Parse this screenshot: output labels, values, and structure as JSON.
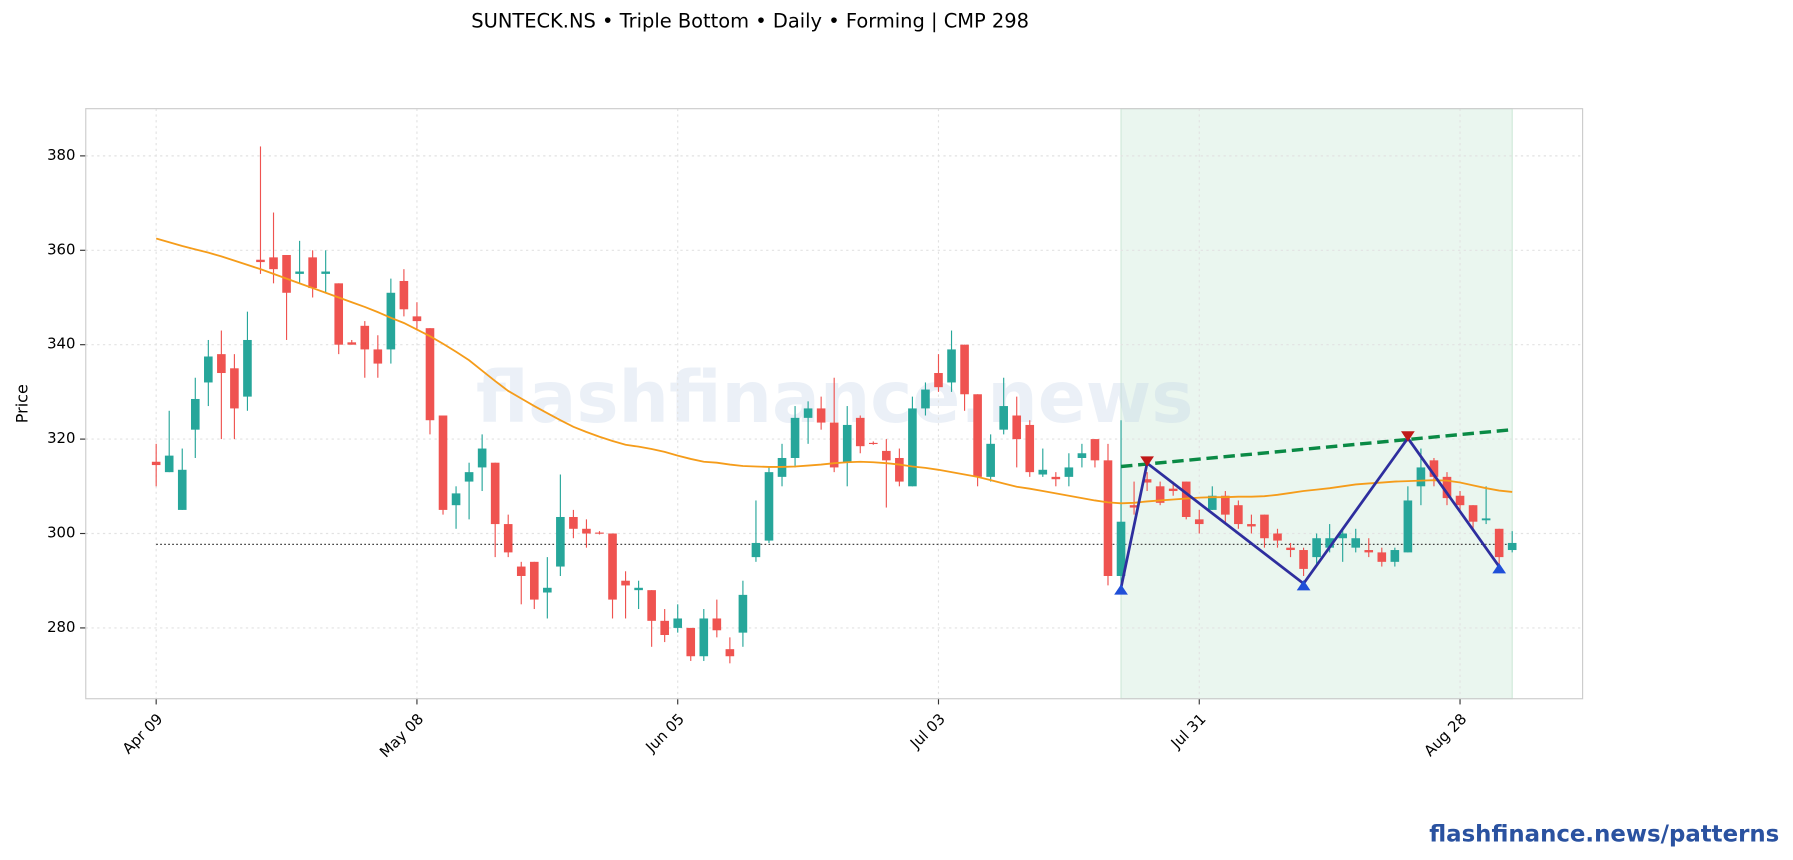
{
  "chart_data": {
    "type": "candlestick",
    "title": "SUNTECK.NS  •  Triple Bottom  •  Daily  •  Forming  |  CMP 298",
    "ylabel": "Price",
    "watermark": "flashfinance.news",
    "source": "flashfinance.news/patterns",
    "categories": [
      "Apr 09",
      null,
      null,
      null,
      null,
      null,
      null,
      null,
      null,
      null,
      null,
      null,
      null,
      null,
      null,
      null,
      null,
      null,
      null,
      null,
      "May 08",
      null,
      null,
      null,
      null,
      null,
      null,
      null,
      null,
      null,
      null,
      null,
      null,
      null,
      null,
      null,
      null,
      null,
      null,
      null,
      "Jun 05",
      null,
      null,
      null,
      null,
      null,
      null,
      null,
      null,
      null,
      null,
      null,
      null,
      null,
      null,
      null,
      null,
      null,
      null,
      null,
      "Jul 03",
      null,
      null,
      null,
      null,
      null,
      null,
      null,
      null,
      null,
      null,
      null,
      null,
      null,
      null,
      null,
      null,
      null,
      null,
      null,
      "Jul 31",
      null,
      null,
      null,
      null,
      null,
      null,
      null,
      null,
      null,
      null,
      null,
      null,
      null,
      null,
      null,
      null,
      null,
      null,
      null,
      "Aug 28",
      null,
      null,
      null,
      null
    ],
    "open": [
      315.2,
      313,
      305,
      322,
      332,
      338,
      335,
      329,
      358,
      358.5,
      359,
      355,
      358.5,
      355,
      353,
      340.5,
      344,
      339,
      339,
      353.5,
      346,
      343.5,
      325,
      306,
      311,
      314,
      315,
      302,
      293,
      294,
      287.5,
      293,
      303.5,
      301,
      300.2,
      300,
      290,
      288,
      288,
      281.5,
      280,
      280,
      274,
      282,
      275.5,
      279,
      295,
      298.5,
      312,
      316,
      324.5,
      326.5,
      323.5,
      315,
      324.5,
      319.2,
      317.5,
      316,
      310,
      326.5,
      334,
      332,
      340,
      329.5,
      312,
      322,
      325,
      323,
      312.5,
      312,
      312,
      316,
      320,
      315.5,
      291,
      306,
      311.5,
      310,
      309.5,
      311,
      303,
      305,
      308,
      306,
      302,
      304,
      300,
      297,
      296.5,
      295,
      297,
      299,
      297,
      296.5,
      296,
      294,
      296,
      310,
      315.5,
      312,
      308,
      306,
      302.8,
      301,
      296.5
    ],
    "high": [
      319,
      326,
      318,
      333,
      341,
      343,
      338,
      347,
      382,
      368,
      359,
      362,
      360,
      360,
      353,
      341,
      345,
      342,
      354,
      356,
      349,
      343.5,
      325,
      310,
      315,
      321,
      315,
      304,
      294,
      294,
      295,
      312.5,
      305,
      303,
      300.5,
      300,
      292,
      290,
      288,
      284,
      285,
      280,
      284,
      286,
      278,
      290,
      307,
      314,
      319,
      327,
      328,
      329,
      333,
      327,
      325,
      319.5,
      320,
      318,
      329,
      332,
      338,
      343,
      340,
      329.5,
      321,
      333,
      329,
      324,
      318,
      313,
      317,
      319,
      320,
      319,
      324,
      311,
      313,
      311,
      311,
      311,
      305,
      310,
      309,
      307,
      304,
      304,
      301,
      298,
      297,
      300,
      302,
      301,
      301,
      299,
      297,
      297,
      310,
      318,
      316,
      313,
      309,
      306,
      310,
      301,
      300.5
    ],
    "low": [
      310,
      313,
      305,
      316,
      327,
      320,
      320,
      326,
      355,
      353,
      341,
      353,
      350,
      351,
      338,
      340,
      333,
      333,
      336,
      346,
      343,
      321,
      304,
      301,
      303,
      309,
      295,
      295,
      285,
      284,
      282,
      291,
      299,
      297,
      299.8,
      282,
      282,
      284,
      276,
      277,
      279,
      273,
      273,
      278,
      272.5,
      276,
      294,
      298,
      310,
      314,
      319,
      322,
      313,
      310,
      317,
      318.8,
      305.5,
      310,
      310,
      325,
      330,
      330,
      326,
      310,
      311,
      321,
      314,
      312,
      312,
      310,
      310,
      314,
      314,
      289,
      289,
      304,
      309,
      306,
      308,
      303,
      300,
      305,
      302,
      301,
      300,
      297,
      297,
      295,
      291,
      293,
      296,
      294,
      296,
      295,
      293,
      293,
      296,
      306,
      310,
      306,
      305,
      301,
      302,
      293,
      296
    ],
    "close": [
      314.5,
      316.5,
      313.5,
      328.5,
      337.5,
      334,
      326.5,
      341,
      357.5,
      356,
      351,
      355.5,
      352,
      355.5,
      340,
      340,
      339,
      336,
      351,
      347.5,
      345,
      324,
      305,
      308.5,
      313,
      318,
      302,
      296,
      291,
      286,
      288.5,
      303.5,
      301,
      300,
      300,
      286,
      289,
      288.5,
      281.5,
      278.5,
      282,
      274,
      282,
      279.5,
      274,
      287,
      298,
      313,
      316,
      324.5,
      326.5,
      323.5,
      314,
      323,
      318.5,
      319,
      315.5,
      311,
      326.5,
      330.5,
      331,
      339,
      329.5,
      312,
      319,
      327,
      320,
      313,
      313.5,
      311.5,
      314,
      317,
      315.5,
      291,
      302.5,
      305.5,
      310.8,
      306.5,
      309,
      303.5,
      302,
      308,
      304,
      302,
      301.5,
      299,
      298.5,
      296.5,
      292.5,
      299,
      299,
      300,
      299,
      296,
      294,
      296.5,
      307,
      314,
      312,
      307.5,
      306,
      302.5,
      303.2,
      295,
      298
    ],
    "up_color": "#26a69a",
    "down_color": "#ef5350",
    "moving_average": {
      "color": "#f59c1a",
      "values": [
        362.5,
        361.7,
        360.9,
        360.2,
        359.5,
        358.7,
        357.8,
        356.9,
        356.0,
        355.0,
        354.0,
        353.0,
        352.0,
        351.0,
        350.0,
        349.0,
        348.0,
        346.9,
        345.7,
        344.6,
        343.2,
        341.8,
        340.2,
        338.5,
        336.7,
        334.5,
        332.3,
        330.2,
        328.6,
        327.0,
        325.5,
        324.0,
        322.6,
        321.5,
        320.5,
        319.6,
        318.8,
        318.4,
        317.9,
        317.3,
        316.5,
        315.8,
        315.2,
        315.0,
        314.6,
        314.3,
        314.2,
        314.1,
        314.1,
        314.2,
        314.4,
        314.6,
        314.9,
        315.1,
        315.2,
        315.1,
        314.9,
        314.6,
        314.2,
        313.9,
        313.5,
        313.0,
        312.5,
        312.0,
        311.3,
        310.6,
        309.9,
        309.5,
        309.0,
        308.5,
        308.0,
        307.5,
        307.0,
        306.6,
        306.4,
        306.5,
        306.8,
        307.0,
        307.2,
        307.4,
        307.6,
        307.7,
        307.7,
        307.8,
        307.8,
        307.9,
        308.2,
        308.6,
        309.0,
        309.3,
        309.6,
        310.0,
        310.4,
        310.6,
        310.8,
        311.0,
        311.1,
        311.2,
        311.3,
        311.2,
        310.8,
        310.2,
        309.6,
        309.1,
        308.8
      ]
    },
    "zone": {
      "x": [
        74,
        104
      ],
      "color": "#eaf6ef"
    },
    "pivots": {
      "x": [
        74,
        76,
        88,
        96,
        103
      ],
      "y": [
        288.5,
        314.9,
        289.4,
        320.2,
        293
      ],
      "color": "#2e2e9e",
      "trough_color": "#1f4fd8",
      "peak_color": "#c01818"
    },
    "resistance": {
      "x": [
        74,
        104
      ],
      "y": [
        314.2,
        322
      ],
      "color": "#0a8a45"
    },
    "cmp_line": 297.7,
    "ylim": [
      265,
      390
    ],
    "yticks": [
      280,
      300,
      320,
      340,
      360,
      380
    ],
    "xlim": [
      -5.4,
      109.4
    ],
    "grid": true
  }
}
